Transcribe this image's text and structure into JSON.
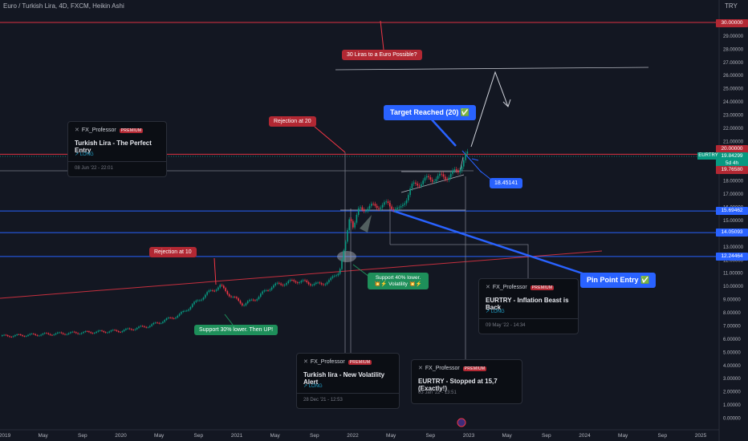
{
  "header": {
    "title": "Euro / Turkish Lira, 4D, FXCM, Heikin Ashi",
    "currency": "TRY"
  },
  "chart_data": {
    "type": "candlestick",
    "symbol": "EURTRY",
    "xlabel": "",
    "ylabel": "",
    "y_ticks": [
      "29.00000",
      "28.00000",
      "27.00000",
      "26.00000",
      "25.00000",
      "24.00000",
      "23.00000",
      "22.00000",
      "21.00000",
      "19.00000",
      "18.00000",
      "17.00000",
      "16.00000",
      "15.00000",
      "14.00000",
      "13.00000",
      "12.00000",
      "11.00000",
      "10.00000",
      "9.00000",
      "8.00000",
      "7.00000",
      "6.00000",
      "5.00000",
      "4.00000",
      "3.00000",
      "2.00000",
      "1.00000",
      "0.00000"
    ],
    "x_ticks": [
      "2019",
      "May",
      "Sep",
      "2020",
      "May",
      "Sep",
      "2021",
      "May",
      "Sep",
      "2022",
      "May",
      "Sep",
      "2023",
      "May",
      "Sep",
      "2024",
      "May",
      "Sep",
      "2025"
    ],
    "y_range": [
      0,
      31.5
    ],
    "price_series": [
      {
        "t": "2019",
        "v": 6.2
      },
      {
        "t": "2019.5",
        "v": 6.4
      },
      {
        "t": "2019.75",
        "v": 6.5
      },
      {
        "t": "2020",
        "v": 6.6
      },
      {
        "t": "2020.25",
        "v": 7.0
      },
      {
        "t": "2020.5",
        "v": 7.8
      },
      {
        "t": "2020.75",
        "v": 9.5
      },
      {
        "t": "2020.85",
        "v": 10.0
      },
      {
        "t": "2020.95",
        "v": 9.2
      },
      {
        "t": "2021.05",
        "v": 8.6
      },
      {
        "t": "2021.15",
        "v": 9.0
      },
      {
        "t": "2021.3",
        "v": 10.0
      },
      {
        "t": "2021.5",
        "v": 10.4
      },
      {
        "t": "2021.7",
        "v": 10.1
      },
      {
        "t": "2021.8",
        "v": 10.4
      },
      {
        "t": "2021.88",
        "v": 11.2
      },
      {
        "t": "2021.93",
        "v": 13.0
      },
      {
        "t": "2021.97",
        "v": 15.5
      },
      {
        "t": "2022.0",
        "v": 14.5
      },
      {
        "t": "2022.05",
        "v": 15.8
      },
      {
        "t": "2022.15",
        "v": 16.0
      },
      {
        "t": "2022.3",
        "v": 16.2
      },
      {
        "t": "2022.4",
        "v": 15.7
      },
      {
        "t": "2022.5",
        "v": 17.5
      },
      {
        "t": "2022.6",
        "v": 18.0
      },
      {
        "t": "2022.7",
        "v": 18.2
      },
      {
        "t": "2022.8",
        "v": 18.3
      },
      {
        "t": "2022.9",
        "v": 18.7
      },
      {
        "t": "2022.97",
        "v": 19.9
      }
    ],
    "price_levels": [
      {
        "label": "30.00000",
        "value": 30.0,
        "color": "#f23645"
      },
      {
        "label": "20.00000",
        "value": 20.0,
        "color": "#f23645"
      },
      {
        "label": "19.84299",
        "value": 19.84,
        "color": "#089981"
      },
      {
        "label": "5d 4h",
        "value": 19.6,
        "color": "#089981"
      },
      {
        "label": "19.76580",
        "value": 19.4,
        "color": "#f23645"
      },
      {
        "label": "15.69462",
        "value": 15.69,
        "color": "#2962ff"
      },
      {
        "label": "14.05093",
        "value": 14.05,
        "color": "#2962ff"
      },
      {
        "label": "12.24464",
        "value": 12.24,
        "color": "#2962ff"
      }
    ],
    "annotations": [
      {
        "text": "30 Liras to a Euro Possible?",
        "color": "#b22833"
      },
      {
        "text": "Rejection at 20",
        "color": "#b22833"
      },
      {
        "text": "Rejection at 10",
        "color": "#b22833"
      },
      {
        "text": "Target Reached (20) ✅",
        "color": "#2962ff"
      },
      {
        "text": "Pin Point Entry ✅",
        "color": "#2962ff"
      },
      {
        "text": "18.45141",
        "color": "#2962ff"
      },
      {
        "text": "Support 30% lower. Then UP!",
        "color": "#089981"
      },
      {
        "text": "Support 40% lower. 💥⚡ Volatility 💥⚡",
        "color": "#089981"
      }
    ]
  },
  "legend_symbol": "EURTRY",
  "ideas": [
    {
      "author": "FX_Professor",
      "badge": "PREMIUM",
      "title": "Turkish Lira - The Perfect Entry",
      "direction": "↗ LONG",
      "date": "08 Jun '22 - 22:01"
    },
    {
      "author": "FX_Professor",
      "badge": "PREMIUM",
      "title": "EURTRY - Inflation Beast is Back",
      "direction": "↗ LONG",
      "date": "09 May '22 - 14:34"
    },
    {
      "author": "FX_Professor",
      "badge": "PREMIUM",
      "title": "Turkish lira - New Volatility Alert",
      "direction": "↗ LONG",
      "date": "28 Dec '21 - 12:53"
    },
    {
      "author": "FX_Professor",
      "badge": "PREMIUM",
      "title": "EURTRY - Stopped at 15,7 (Exactly!)",
      "direction": "↗ LONG",
      "date": "03 Jan '22 - 13:51"
    }
  ],
  "colors": {
    "background": "#131722",
    "up": "#089981",
    "down": "#f23645",
    "blue": "#2962ff",
    "red_label": "#b22833"
  }
}
